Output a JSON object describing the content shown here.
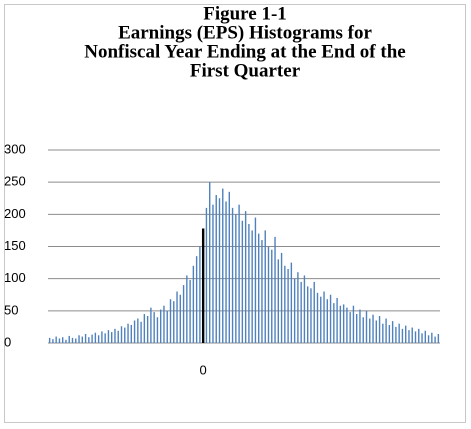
{
  "chart_data": {
    "type": "bar",
    "title": [
      "Figure 1-1",
      "Earnings (EPS) Histograms for",
      "Nonfiscal Year Ending at the End of the",
      "First Quarter"
    ],
    "categories": [
      null,
      null,
      null,
      null,
      null,
      null,
      null,
      null,
      null,
      null,
      null,
      null,
      null,
      null,
      null,
      null,
      null,
      null,
      null,
      null,
      null,
      null,
      null,
      null,
      null,
      null,
      null,
      null,
      null,
      null,
      null,
      null,
      null,
      null,
      null,
      null,
      null,
      null,
      null,
      null,
      null,
      null,
      null,
      null,
      null,
      null,
      null,
      "0",
      null,
      null,
      null,
      null,
      null,
      null,
      null,
      null,
      null,
      null,
      null,
      null,
      null,
      null,
      null,
      null,
      null,
      null,
      null,
      null,
      null,
      null,
      null,
      null,
      null,
      null,
      null,
      null,
      null,
      null,
      null,
      null,
      null,
      null,
      null,
      null,
      null,
      null,
      null,
      null,
      null,
      null,
      null,
      null,
      null,
      null,
      null,
      null,
      null,
      null,
      null,
      null,
      null,
      null,
      null,
      null,
      null,
      null,
      null,
      null,
      null,
      null,
      null,
      null,
      null,
      null,
      null,
      null,
      null,
      null,
      null,
      null
    ],
    "values": [
      8,
      6,
      10,
      7,
      9,
      5,
      11,
      8,
      7,
      12,
      10,
      14,
      9,
      13,
      16,
      12,
      18,
      15,
      20,
      17,
      22,
      19,
      26,
      24,
      30,
      28,
      35,
      38,
      33,
      45,
      42,
      55,
      48,
      40,
      52,
      58,
      50,
      68,
      65,
      80,
      75,
      90,
      105,
      98,
      120,
      135,
      150,
      178,
      210,
      250,
      215,
      230,
      225,
      240,
      220,
      235,
      210,
      200,
      215,
      190,
      205,
      185,
      175,
      195,
      170,
      160,
      175,
      150,
      145,
      165,
      130,
      140,
      120,
      115,
      125,
      100,
      110,
      95,
      105,
      88,
      85,
      95,
      78,
      72,
      80,
      68,
      75,
      62,
      70,
      58,
      60,
      55,
      48,
      58,
      45,
      52,
      40,
      50,
      38,
      44,
      35,
      42,
      30,
      38,
      28,
      34,
      25,
      30,
      22,
      27,
      20,
      24,
      18,
      22,
      15,
      19,
      12,
      16,
      10,
      14
    ],
    "colors": [
      "#4f81bd",
      "#4f81bd",
      "#4f81bd",
      "#4f81bd",
      "#4f81bd",
      "#4f81bd",
      "#4f81bd",
      "#4f81bd",
      "#4f81bd",
      "#4f81bd",
      "#4f81bd",
      "#4f81bd",
      "#4f81bd",
      "#4f81bd",
      "#4f81bd",
      "#4f81bd",
      "#4f81bd",
      "#4f81bd",
      "#4f81bd",
      "#4f81bd",
      "#4f81bd",
      "#4f81bd",
      "#4f81bd",
      "#4f81bd",
      "#4f81bd",
      "#4f81bd",
      "#4f81bd",
      "#4f81bd",
      "#4f81bd",
      "#4f81bd",
      "#4f81bd",
      "#4f81bd",
      "#4f81bd",
      "#4f81bd",
      "#4f81bd",
      "#4f81bd",
      "#4f81bd",
      "#4f81bd",
      "#4f81bd",
      "#4f81bd",
      "#4f81bd",
      "#4f81bd",
      "#4f81bd",
      "#4f81bd",
      "#4f81bd",
      "#4f81bd",
      "#4f81bd",
      "#000000",
      "#4f81bd",
      "#4f81bd",
      "#4f81bd",
      "#4f81bd",
      "#4f81bd",
      "#4f81bd",
      "#4f81bd",
      "#4f81bd",
      "#4f81bd",
      "#4f81bd",
      "#4f81bd",
      "#4f81bd",
      "#4f81bd",
      "#4f81bd",
      "#4f81bd",
      "#4f81bd",
      "#4f81bd",
      "#4f81bd",
      "#4f81bd",
      "#4f81bd",
      "#4f81bd",
      "#4f81bd",
      "#4f81bd",
      "#4f81bd",
      "#4f81bd",
      "#4f81bd",
      "#4f81bd",
      "#4f81bd",
      "#4f81bd",
      "#4f81bd",
      "#4f81bd",
      "#4f81bd",
      "#4f81bd",
      "#4f81bd",
      "#4f81bd",
      "#4f81bd",
      "#4f81bd",
      "#4f81bd",
      "#4f81bd",
      "#4f81bd",
      "#4f81bd",
      "#4f81bd",
      "#4f81bd",
      "#4f81bd",
      "#4f81bd",
      "#4f81bd",
      "#4f81bd",
      "#4f81bd",
      "#4f81bd",
      "#4f81bd",
      "#4f81bd",
      "#4f81bd",
      "#4f81bd",
      "#4f81bd",
      "#4f81bd",
      "#4f81bd",
      "#4f81bd",
      "#4f81bd",
      "#4f81bd",
      "#4f81bd",
      "#4f81bd",
      "#4f81bd",
      "#4f81bd",
      "#4f81bd",
      "#4f81bd",
      "#4f81bd",
      "#4f81bd",
      "#4f81bd",
      "#4f81bd",
      "#4f81bd",
      "#4f81bd",
      "#4f81bd"
    ],
    "ylim": [
      0,
      300
    ],
    "yticks": [
      0,
      50,
      100,
      150,
      200,
      250,
      300
    ],
    "grid": true
  }
}
